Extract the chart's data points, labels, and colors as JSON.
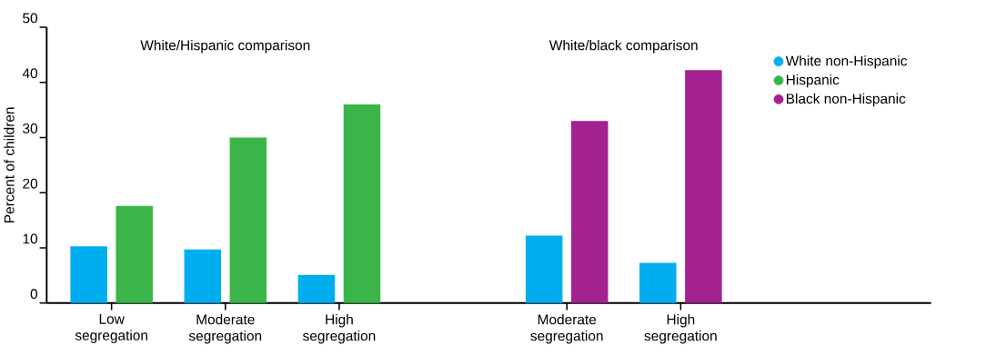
{
  "chart_data": {
    "type": "bar",
    "categories": [
      "Low segregation",
      "Moderate segregation",
      "High segregation",
      null,
      "Moderate segregation",
      "High segregation"
    ],
    "series": [
      {
        "name": "White non-Hispanic",
        "color": "#00aeef",
        "values": [
          10.3,
          9.7,
          5.1,
          null,
          12.2,
          7.3
        ]
      },
      {
        "name": "Hispanic",
        "color": "#3bb54a",
        "values": [
          17.6,
          30,
          36,
          null,
          null,
          null
        ]
      },
      {
        "name": "Black non-Hispanic",
        "color": "#a3228f",
        "values": [
          null,
          null,
          null,
          null,
          33,
          42.2
        ]
      }
    ],
    "ylabel": "Percent of children",
    "ylim": [
      0,
      50
    ],
    "yticks": [
      0,
      10,
      20,
      30,
      40,
      50
    ],
    "annotations": [
      "White/Hispanic comparison",
      "White/black comparison"
    ],
    "legend": "top right"
  }
}
